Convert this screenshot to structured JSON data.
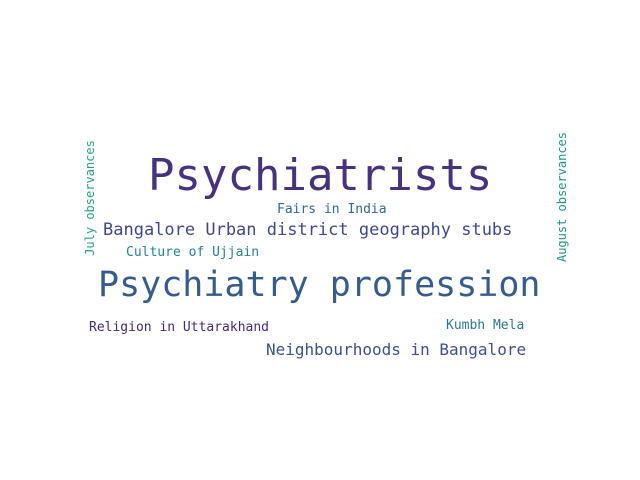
{
  "words": [
    {
      "text": "Psychiatrists",
      "color": "#46327e"
    },
    {
      "text": "Psychiatry profession",
      "color": "#365c8d"
    },
    {
      "text": "Bangalore Urban district geography stubs",
      "color": "#3f4889"
    },
    {
      "text": "Neighbourhoods in Bangalore",
      "color": "#3b528b"
    },
    {
      "text": "Fairs in India",
      "color": "#31688e"
    },
    {
      "text": "Culture of Ujjain",
      "color": "#26828e"
    },
    {
      "text": "Religion in Uttarakhand",
      "color": "#482878"
    },
    {
      "text": "Kumbh Mela",
      "color": "#2a788e"
    },
    {
      "text": "July observances",
      "color": "#2aa086"
    },
    {
      "text": "August observances",
      "color": "#21918c"
    }
  ]
}
